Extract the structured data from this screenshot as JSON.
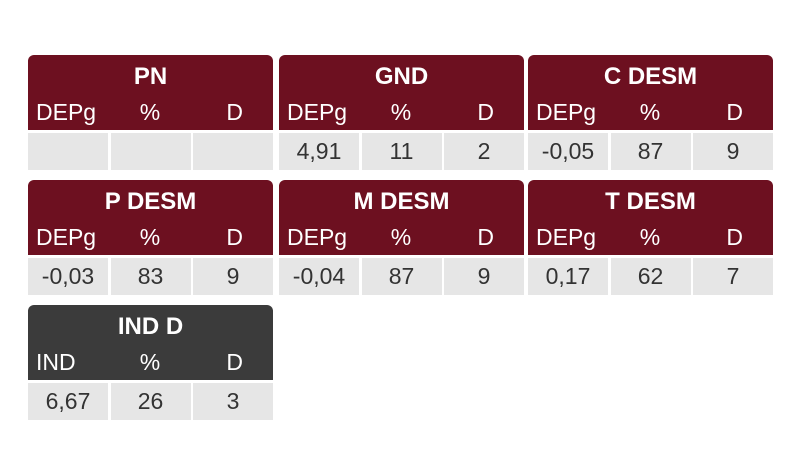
{
  "panels": [
    {
      "title": "PN",
      "color": "#6d1020",
      "headers": [
        "DEPg",
        "%",
        "D"
      ],
      "values": []
    },
    {
      "title": "GND",
      "color": "#6d1020",
      "headers": [
        "DEPg",
        "%",
        "D"
      ],
      "values": [
        "4,91",
        "11",
        "2"
      ]
    },
    {
      "title": "C DESM",
      "color": "#6d1020",
      "headers": [
        "DEPg",
        "%",
        "D"
      ],
      "values": [
        "-0,05",
        "87",
        "9"
      ]
    },
    {
      "title": "P DESM",
      "color": "#6d1020",
      "headers": [
        "DEPg",
        "%",
        "D"
      ],
      "values": [
        "-0,03",
        "83",
        "9"
      ]
    },
    {
      "title": "M DESM",
      "color": "#6d1020",
      "headers": [
        "DEPg",
        "%",
        "D"
      ],
      "values": [
        "-0,04",
        "87",
        "9"
      ]
    },
    {
      "title": "T DESM",
      "color": "#6d1020",
      "headers": [
        "DEPg",
        "%",
        "D"
      ],
      "values": [
        "0,17",
        "62",
        "7"
      ]
    },
    {
      "title": "IND D",
      "color": "#3b3b3b",
      "headers": [
        "IND",
        "%",
        "D"
      ],
      "values": [
        "6,67",
        "26",
        "3"
      ]
    }
  ]
}
